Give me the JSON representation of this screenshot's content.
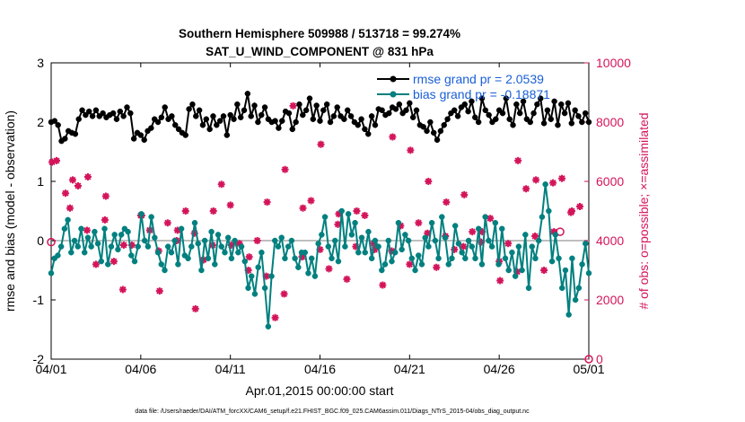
{
  "chart_data": {
    "type": "line",
    "title": "Southern Hemisphere 509988 / 513718 = 99.274%",
    "subtitle": "SAT_U_WIND_COMPONENT @ 831 hPa",
    "xlabel": "Apr.01,2015 00:00:00 start",
    "ylabel_left": "rmse and bias (model - observation)",
    "ylabel_right": "# of obs: o=possible; ×=assimilated",
    "footer": "data file: /Users/raeder/DAI/ATM_forcXX/CAM6_setup/f.e21.FHIST_BGC.f09_025.CAM6assim.011/Diags_NTrS_2015-04/obs_diag_output.nc",
    "xlim": [
      0,
      30
    ],
    "ylim_left": [
      -2,
      3
    ],
    "ylim_right": [
      0,
      10000
    ],
    "x_ticks": [
      0,
      5,
      10,
      15,
      20,
      25,
      30
    ],
    "x_tick_labels": [
      "04/01",
      "04/06",
      "04/11",
      "04/16",
      "04/21",
      "04/26",
      "05/01"
    ],
    "y_ticks_left": [
      "-2",
      "-1",
      "0",
      "1",
      "2",
      "3"
    ],
    "y_ticks_right": [
      "0",
      "2000",
      "4000",
      "6000",
      "8000",
      "10000"
    ],
    "legend": [
      {
        "label": "rmse grand pr = 2.0539",
        "color": "#000000"
      },
      {
        "label": "bias grand pr = -0.18871",
        "color": "#00807f"
      }
    ],
    "colors": {
      "rmse": "#000000",
      "bias": "#00807f",
      "obs": "#d4145a",
      "zero_line": "#bfbfbf",
      "legend_text": "#1a5fd6"
    },
    "series": [
      {
        "name": "rmse",
        "axis": "left",
        "values": [
          2.0,
          2.02,
          1.95,
          1.68,
          1.72,
          1.85,
          1.82,
          1.8,
          2.05,
          2.2,
          2.12,
          2.18,
          2.1,
          2.2,
          2.1,
          2.15,
          2.08,
          2.12,
          2.15,
          2.05,
          2.18,
          2.1,
          2.25,
          2.15,
          1.72,
          1.82,
          1.78,
          1.7,
          1.85,
          1.9,
          2.05,
          2.0,
          2.08,
          2.25,
          2.05,
          2.1,
          1.95,
          1.88,
          1.82,
          1.78,
          2.22,
          2.3,
          2.1,
          2.2,
          1.95,
          2.05,
          1.88,
          2.1,
          1.95,
          2.02,
          2.1,
          1.78,
          2.12,
          2.05,
          2.3,
          2.08,
          2.2,
          2.48,
          2.1,
          2.28,
          2.0,
          2.12,
          2.25,
          2.05,
          2.0,
          2.02,
          1.9,
          2.02,
          2.18,
          2.15,
          1.88,
          2.0,
          2.3,
          2.12,
          2.2,
          2.4,
          2.05,
          2.28,
          2.02,
          2.2,
          2.3,
          2.0,
          2.1,
          2.25,
          2.1,
          2.05,
          2.2,
          2.1,
          2.0,
          1.95,
          2.05,
          1.88,
          1.8,
          2.1,
          1.95,
          2.22,
          2.2,
          2.12,
          2.15,
          2.25,
          2.22,
          2.3,
          2.15,
          2.2,
          2.32,
          2.08,
          2.2,
          1.95,
          1.92,
          1.85,
          2.0,
          1.82,
          1.7,
          1.85,
          1.95,
          2.05,
          2.15,
          2.2,
          2.1,
          2.25,
          2.3,
          2.18,
          2.35,
          2.08,
          2.0,
          2.4,
          2.2,
          2.12,
          2.0,
          2.05,
          2.2,
          2.15,
          2.4,
          2.05,
          1.95,
          2.3,
          2.15,
          2.35,
          2.05,
          2.0,
          2.15,
          2.3,
          2.4,
          1.98,
          2.2,
          2.05,
          2.35,
          1.95,
          2.3,
          2.15,
          2.32,
          1.98,
          2.2,
          2.1,
          2.0,
          2.15,
          2.0
        ],
        "markers": true
      },
      {
        "name": "bias",
        "axis": "left",
        "values": [
          -0.55,
          -0.3,
          -0.25,
          -0.1,
          0.2,
          0.35,
          -0.2,
          0.0,
          -0.1,
          0.2,
          -0.2,
          0.05,
          -0.1,
          0.15,
          -0.05,
          -0.35,
          0.2,
          -0.4,
          -0.1,
          0.1,
          -0.15,
          0.1,
          0.2,
          0.15,
          -0.25,
          -0.35,
          -0.1,
          0.45,
          0.0,
          -0.1,
          0.4,
          0.05,
          -0.2,
          -0.4,
          -0.5,
          -0.1,
          -0.2,
          0.0,
          -0.4,
          0.2,
          -0.25,
          -0.3,
          -0.1,
          0.3,
          -0.05,
          -0.5,
          0.0,
          -0.3,
          0.15,
          -0.4,
          0.1,
          -0.1,
          -0.2,
          0.05,
          -0.3,
          0.0,
          -0.2,
          -0.1,
          -0.35,
          -0.8,
          -0.6,
          -0.9,
          -0.45,
          -0.2,
          -0.8,
          -1.45,
          -0.6,
          0.0,
          -0.1,
          0.05,
          -0.3,
          -0.1,
          0.0,
          -0.3,
          -0.45,
          -0.2,
          -0.2,
          -0.55,
          -0.3,
          -0.6,
          -0.05,
          0.1,
          0.4,
          -0.1,
          -0.3,
          0.0,
          -0.35,
          0.5,
          -0.1,
          0.45,
          0.1,
          0.3,
          -0.2,
          0.05,
          -0.2,
          0.15,
          -0.3,
          0.0,
          -0.1,
          -0.5,
          -0.4,
          0.0,
          -0.35,
          -0.2,
          0.3,
          -0.15,
          0.1,
          0.0,
          -0.3,
          -0.5,
          -0.25,
          -0.4,
          0.05,
          -0.1,
          0.3,
          0.0,
          -0.3,
          0.4,
          0.05,
          -0.4,
          -0.3,
          0.25,
          -0.05,
          -0.2,
          -0.3,
          0.0,
          -0.1,
          -0.3,
          0.2,
          -0.4,
          0.4,
          0.0,
          -0.1,
          0.3,
          -0.4,
          0.2,
          -0.3,
          -0.5,
          -0.2,
          -0.6,
          -0.1,
          -0.5,
          0.1,
          -0.8,
          -0.1,
          -0.3,
          0.0,
          0.4,
          0.95,
          0.5,
          -0.35,
          0.1,
          -0.3,
          -0.8,
          -0.5,
          -1.25,
          -0.3,
          -1.0,
          -0.8,
          -0.4,
          -0.05,
          -0.55
        ],
        "markers": true
      },
      {
        "name": "obs assimilated",
        "axis": "right",
        "style": "scatter",
        "x_daily": true,
        "values": [
          6650,
          5100,
          6150,
          5500,
          3850,
          4850,
          2300,
          4350,
          1700,
          5000,
          3850,
          3450,
          5300,
          6400,
          5100,
          7250,
          4900,
          5000,
          3700,
          7500,
          7050,
          6000,
          5300,
          5550,
          4300,
          2650,
          6700,
          6050,
          4300,
          5000
        ]
      }
    ],
    "obs_extra_points": [
      {
        "x": 0.3,
        "y": 6700
      },
      {
        "x": 0.8,
        "y": 5600
      },
      {
        "x": 1.2,
        "y": 6050
      },
      {
        "x": 1.5,
        "y": 5850
      },
      {
        "x": 2.0,
        "y": 4350
      },
      {
        "x": 2.5,
        "y": 3200
      },
      {
        "x": 3.0,
        "y": 4700
      },
      {
        "x": 3.5,
        "y": 3300
      },
      {
        "x": 4.0,
        "y": 2350
      },
      {
        "x": 4.5,
        "y": 3850
      },
      {
        "x": 5.0,
        "y": 4850
      },
      {
        "x": 5.5,
        "y": 4350
      },
      {
        "x": 6.0,
        "y": 3650
      },
      {
        "x": 6.5,
        "y": 4600
      },
      {
        "x": 7.0,
        "y": 4000
      },
      {
        "x": 7.5,
        "y": 5000
      },
      {
        "x": 8.0,
        "y": 4250
      },
      {
        "x": 8.5,
        "y": 3350
      },
      {
        "x": 9.0,
        "y": 3850
      },
      {
        "x": 9.5,
        "y": 5900
      },
      {
        "x": 10.0,
        "y": 5200
      },
      {
        "x": 10.5,
        "y": 3900
      },
      {
        "x": 11.0,
        "y": 3000
      },
      {
        "x": 11.5,
        "y": 4000
      },
      {
        "x": 12.0,
        "y": 2800
      },
      {
        "x": 12.5,
        "y": 1400
      },
      {
        "x": 13.0,
        "y": 2200
      },
      {
        "x": 13.5,
        "y": 8550
      },
      {
        "x": 14.0,
        "y": 3450
      },
      {
        "x": 14.5,
        "y": 5350
      },
      {
        "x": 15.0,
        "y": 3700
      },
      {
        "x": 15.5,
        "y": 3050
      },
      {
        "x": 16.0,
        "y": 4550
      },
      {
        "x": 16.5,
        "y": 2700
      },
      {
        "x": 17.0,
        "y": 3800
      },
      {
        "x": 17.5,
        "y": 4850
      },
      {
        "x": 18.0,
        "y": 3900
      },
      {
        "x": 18.5,
        "y": 2500
      },
      {
        "x": 19.0,
        "y": 3650
      },
      {
        "x": 19.5,
        "y": 4500
      },
      {
        "x": 20.0,
        "y": 3200
      },
      {
        "x": 20.5,
        "y": 4600
      },
      {
        "x": 21.0,
        "y": 4250
      },
      {
        "x": 21.5,
        "y": 3100
      },
      {
        "x": 22.0,
        "y": 4150
      },
      {
        "x": 22.5,
        "y": 3700
      },
      {
        "x": 23.0,
        "y": 3800
      },
      {
        "x": 23.5,
        "y": 4300
      },
      {
        "x": 24.0,
        "y": 3950
      },
      {
        "x": 24.5,
        "y": 4750
      },
      {
        "x": 25.0,
        "y": 3300
      },
      {
        "x": 25.5,
        "y": 3900
      },
      {
        "x": 26.0,
        "y": 2950
      },
      {
        "x": 26.5,
        "y": 5750
      },
      {
        "x": 27.0,
        "y": 4150
      },
      {
        "x": 27.5,
        "y": 3000
      },
      {
        "x": 28.0,
        "y": 5950
      },
      {
        "x": 28.5,
        "y": 6100
      },
      {
        "x": 29.0,
        "y": 4950
      },
      {
        "x": 29.5,
        "y": 5150
      }
    ],
    "obs_possible_points": [
      {
        "x": 0.0,
        "y": 3950
      },
      {
        "x": 28.4,
        "y": 4300
      },
      {
        "x": 30.0,
        "y": 0
      }
    ]
  }
}
